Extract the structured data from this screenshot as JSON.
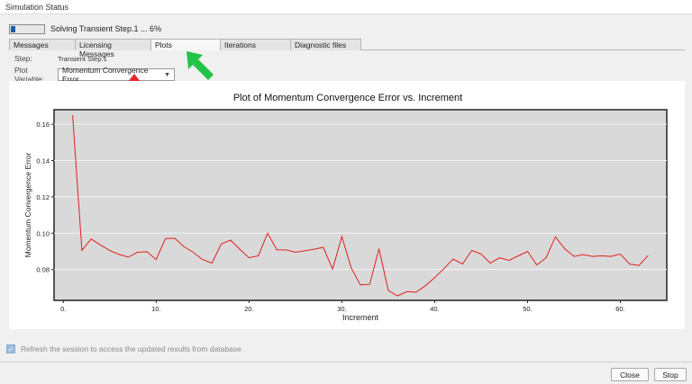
{
  "window": {
    "title": "Simulation Status"
  },
  "progress": {
    "text": "Solving Transient Step.1 ... 6%",
    "percent": 6
  },
  "tabs": [
    {
      "label": "Messages",
      "active": false
    },
    {
      "label": "Licensing Messages",
      "active": false
    },
    {
      "label": "Plots",
      "active": true
    },
    {
      "label": "Iterations",
      "active": false
    },
    {
      "label": "Diagnostic files",
      "active": false
    }
  ],
  "step": {
    "label": "Step:",
    "value": "Transient Step.1"
  },
  "plot_variable": {
    "label": "Plot Variable:",
    "value": "Momentum Convergence Error"
  },
  "refresh": {
    "label": "Refresh the session to access the updated results from database",
    "checked": true,
    "enabled": false
  },
  "buttons": {
    "close": "Close",
    "stop": "Stop"
  },
  "colors": {
    "series": "#e02020",
    "plot_bg": "#d9d9d9",
    "arrow_red": "#e8262b",
    "arrow_green": "#22c447"
  },
  "annotations": [
    {
      "type": "arrow",
      "color": "red",
      "points_to": "plot-variable-select"
    },
    {
      "type": "arrow",
      "color": "green",
      "points_to": "tab-plots"
    }
  ],
  "chart_data": {
    "type": "line",
    "title": "Plot of Momentum Convergence Error vs. Increment",
    "xlabel": "Increment",
    "ylabel": "Momentum Convergence Error",
    "xlim": [
      -1,
      65
    ],
    "ylim": [
      0.063,
      0.168
    ],
    "xticks": [
      0,
      10,
      20,
      30,
      40,
      50,
      60
    ],
    "xtick_labels": [
      "0.",
      "10.",
      "20.",
      "30.",
      "40.",
      "50.",
      "60."
    ],
    "yticks": [
      0.08,
      0.1,
      0.12,
      0.14,
      0.16
    ],
    "ytick_labels": [
      "0.08",
      "0.10",
      "0.12",
      "0.14",
      "0.16"
    ],
    "grid": "horizontal",
    "legend": "none",
    "series": [
      {
        "x": [
          1,
          2,
          3,
          4,
          5,
          6,
          7,
          8,
          9,
          10,
          11,
          12,
          13,
          14,
          15,
          16,
          17,
          18,
          19,
          20,
          21,
          22,
          23,
          24,
          25,
          26,
          27,
          28,
          29,
          30,
          31,
          32,
          33,
          34,
          35,
          36,
          37,
          38,
          39,
          40,
          41,
          42,
          43,
          44,
          45,
          46,
          47,
          48,
          49,
          50,
          51,
          52,
          53,
          54,
          55,
          56,
          57,
          58,
          59,
          60,
          61,
          62,
          63
        ],
        "y": [
          0.165,
          0.0905,
          0.0968,
          0.0935,
          0.0905,
          0.0883,
          0.0868,
          0.0895,
          0.0898,
          0.0855,
          0.097,
          0.0972,
          0.0925,
          0.0895,
          0.0855,
          0.0835,
          0.094,
          0.0962,
          0.0912,
          0.0865,
          0.0875,
          0.1,
          0.0908,
          0.0908,
          0.0895,
          0.0903,
          0.0912,
          0.0922,
          0.0802,
          0.0982,
          0.081,
          0.0715,
          0.0718,
          0.0915,
          0.0685,
          0.0655,
          0.0678,
          0.0675,
          0.071,
          0.0755,
          0.0805,
          0.0858,
          0.083,
          0.0905,
          0.0885,
          0.0835,
          0.0865,
          0.085,
          0.0875,
          0.09,
          0.0825,
          0.0865,
          0.098,
          0.0915,
          0.0872,
          0.0882,
          0.0872,
          0.0875,
          0.0872,
          0.0885,
          0.083,
          0.0822,
          0.0878
        ]
      }
    ]
  }
}
